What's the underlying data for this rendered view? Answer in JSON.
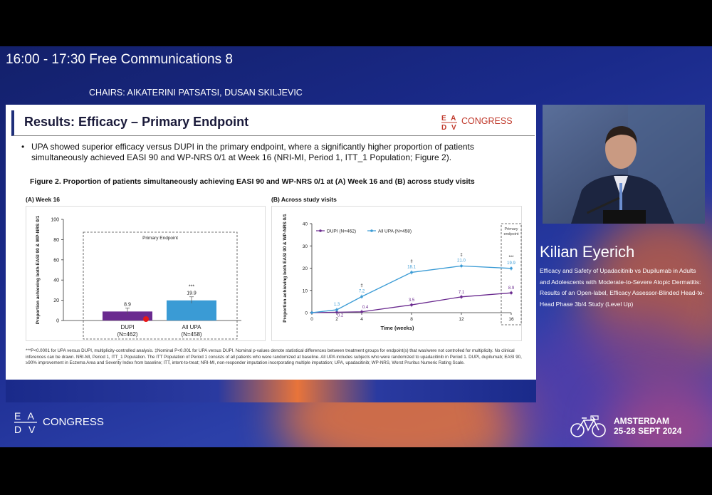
{
  "session": {
    "title": "16:00 - 17:30 Free Communications 8",
    "chairs": "CHAIRS: AIKATERINI PATSATSI, DUSAN SKILJEVIC"
  },
  "slide": {
    "title": "Results: Efficacy – Primary Endpoint",
    "logo_letters": "EADV",
    "logo_word": "CONGRESS",
    "bullet": "UPA showed superior efficacy versus DUPI in the primary endpoint, where a significantly higher proportion of patients simultaneously achieved EASI 90 and WP-NRS 0/1 at Week 16 (NRI-MI, Period 1, ITT_1 Population; Figure 2).",
    "figure_caption": "Figure 2. Proportion of patients simultaneously achieving EASI 90 and WP-NRS 0/1 at (A) Week 16 and (B) across study visits",
    "panel_a_label": "(A) Week 16",
    "panel_b_label": "(B) Across study visits",
    "footnote": "***P<0.0001 for UPA versus DUPI, multiplicity-controlled analysis. ‡Nominal P<0.001 for UPA versus DUPI. Nominal p-values denote statistical differences between treatment groups for endpoint(s) that was/were not controlled for multiplicity. No clinical inferences can be drawn. NRI-MI, Period 1, ITT_1 Population. The ITT Population of Period 1 consists of all patients who were randomized at baseline. All UPA includes subjects who were randomized to upadacitinib in Period 1. DUPI, dupilumab; EASI 90, ≥90% improvement in Eczema Area and Severity Index from baseline; ITT, intent-to-treat; NRI-MI, non-responder imputation incorporating multiple imputation; UPA, upadacitinib; WP-NRS, Worst Pruritus Numeric Rating Scale."
  },
  "chart_data": [
    {
      "type": "bar",
      "ylabel": "Proportion achieving both EASI 90 & WP-NRS 0/1",
      "ylim": [
        0,
        100
      ],
      "yticks": [
        "0",
        "20",
        "40",
        "60",
        "80",
        "100"
      ],
      "annotation": "Primary Endpoint",
      "categories": [
        "DUPI\n(N=462)",
        "All UPA\n(N=458)"
      ],
      "category_names": [
        "DUPI",
        "All UPA"
      ],
      "category_ns": [
        "(N=462)",
        "(N=458)"
      ],
      "values": [
        8.9,
        19.9
      ],
      "value_labels": [
        "8.9",
        "19.9"
      ],
      "significance": [
        "",
        "***"
      ],
      "colors": [
        "#6a2a8f",
        "#3a9bd5"
      ]
    },
    {
      "type": "line",
      "xlabel": "Time (weeks)",
      "ylabel": "Proportion achieving both EASI 90 & WP-NRS 0/1",
      "ylim": [
        0,
        40
      ],
      "yticks": [
        "0",
        "10",
        "20",
        "30",
        "40"
      ],
      "x": [
        0,
        2,
        4,
        8,
        12,
        16
      ],
      "xticks": [
        "0",
        "2",
        "4",
        "8",
        "12",
        "16"
      ],
      "annotation": "Primary endpoint",
      "significance_marks": [
        "",
        "",
        "‡",
        "‡",
        "‡",
        "***"
      ],
      "series": [
        {
          "name": "DUPI (N=462)",
          "color": "#6a2a8f",
          "values": [
            0,
            0.2,
            0.4,
            3.5,
            7.1,
            8.9
          ],
          "labels": [
            "",
            "0.2",
            "0.4",
            "3.5",
            "7.1",
            "8.9"
          ]
        },
        {
          "name": "All UPA (N=458)",
          "color": "#3a9bd5",
          "values": [
            0,
            1.3,
            7.2,
            18.1,
            21.0,
            19.9
          ],
          "labels": [
            "",
            "1.3",
            "7.2",
            "18.1",
            "21.0",
            "19.9"
          ]
        }
      ]
    }
  ],
  "speaker": {
    "name": "Kilian Eyerich",
    "talk_title": "Efficacy and Safety of Upadacitinib vs Dupilumab in Adults and Adolescents with Moderate-to-Severe Atopic Dermatitis: Results of an Open-label, Efficacy Assessor-Blinded Head-to-Head Phase 3b/4 Study (Level Up)"
  },
  "branding": {
    "eadv_letters": "EADV",
    "eadv_word": "CONGRESS",
    "city": "AMSTERDAM",
    "dates": "25-28 SEPT 2024"
  }
}
